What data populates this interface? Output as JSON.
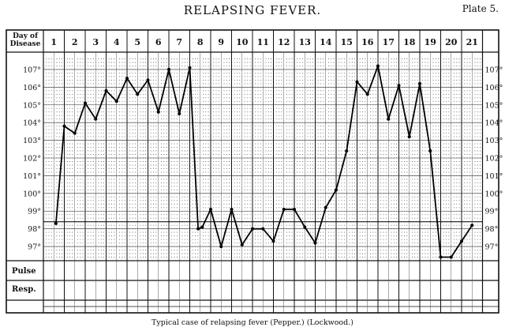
{
  "header": {
    "title": "RELAPSING FEVER.",
    "plate": "Plate 5."
  },
  "caption": "Typical case of relapsing fever (Pepper.) (Lockwood.)",
  "row_labels": {
    "day": [
      "Day of",
      "Disease"
    ],
    "pulse": "Pulse",
    "resp": "Resp."
  },
  "chart_data": {
    "type": "line",
    "xlabel": "Day of Disease",
    "days": [
      1,
      2,
      3,
      4,
      5,
      6,
      7,
      8,
      9,
      10,
      11,
      12,
      13,
      14,
      15,
      16,
      17,
      18,
      19,
      20,
      21
    ],
    "day_labels": [
      "1",
      "2",
      "3",
      "4",
      "5",
      "6",
      "7",
      "8",
      "9",
      "10",
      "11",
      "12",
      "13",
      "14",
      "15",
      "16",
      "17",
      "18",
      "19",
      "20",
      "21"
    ],
    "y_ticks": [
      97,
      98,
      99,
      100,
      101,
      102,
      103,
      104,
      105,
      106,
      107
    ],
    "y_tick_labels": [
      "97°",
      "98°",
      "99°",
      "100°",
      "101°",
      "102°",
      "103°",
      "104°",
      "105°",
      "106°",
      "107°"
    ],
    "ylim": [
      96.2,
      107.8
    ],
    "grid": true,
    "series": [
      {
        "x": [
          1.1,
          1.5,
          2.0,
          2.5,
          3.0,
          3.5,
          4.0,
          4.5,
          5.0,
          5.5,
          6.0,
          6.5,
          7.0,
          7.5,
          7.9,
          8.1,
          8.5,
          9.0,
          9.5,
          10.0,
          10.5,
          11.0,
          11.5,
          12.0,
          12.5,
          13.0,
          13.5,
          14.0,
          14.5,
          15.0,
          15.5,
          16.0,
          16.5,
          17.0,
          17.5,
          18.0,
          18.5,
          19.0,
          19.5,
          20.0,
          20.5,
          21.0
        ],
        "y": [
          98.3,
          103.8,
          103.4,
          105.1,
          104.2,
          105.8,
          105.2,
          106.5,
          105.6,
          106.4,
          104.6,
          107.0,
          104.5,
          107.1,
          98.0,
          98.1,
          99.1,
          97.0,
          99.1,
          97.1,
          98.0,
          98.0,
          97.3,
          99.1,
          99.1,
          98.1,
          97.2,
          99.2,
          100.2,
          102.4,
          106.3,
          105.6,
          107.2,
          104.2,
          106.1,
          103.2,
          106.2,
          102.4,
          96.4,
          96.4,
          97.3,
          98.2
        ]
      }
    ]
  }
}
